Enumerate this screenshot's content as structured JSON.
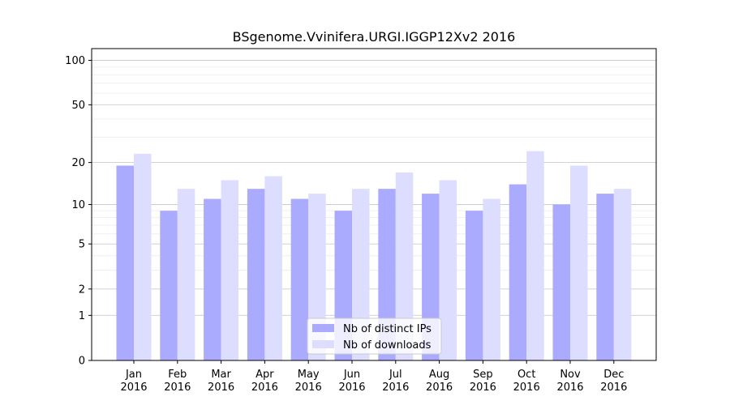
{
  "chart_data": {
    "type": "bar",
    "title": "BSgenome.Vvinifera.URGI.IGGP12Xv2 2016",
    "xlabel": "",
    "ylabel": "",
    "yscale": "log(1+y)",
    "ylim": [
      0,
      120
    ],
    "yticks": [
      0,
      1,
      2,
      5,
      10,
      20,
      50,
      100
    ],
    "grid": true,
    "legend_position": "lower center",
    "categories": [
      "Jan\n2016",
      "Feb\n2016",
      "Mar\n2016",
      "Apr\n2016",
      "May\n2016",
      "Jun\n2016",
      "Jul\n2016",
      "Aug\n2016",
      "Sep\n2016",
      "Oct\n2016",
      "Nov\n2016",
      "Dec\n2016"
    ],
    "series": [
      {
        "name": "Nb of distinct IPs",
        "color": "#aaaaff",
        "values": [
          19,
          9,
          11,
          13,
          11,
          9,
          13,
          12,
          9,
          14,
          10,
          12
        ]
      },
      {
        "name": "Nb of downloads",
        "color": "#ddddff",
        "values": [
          23,
          13,
          15,
          16,
          12,
          13,
          17,
          15,
          11,
          24,
          19,
          13
        ]
      }
    ]
  }
}
